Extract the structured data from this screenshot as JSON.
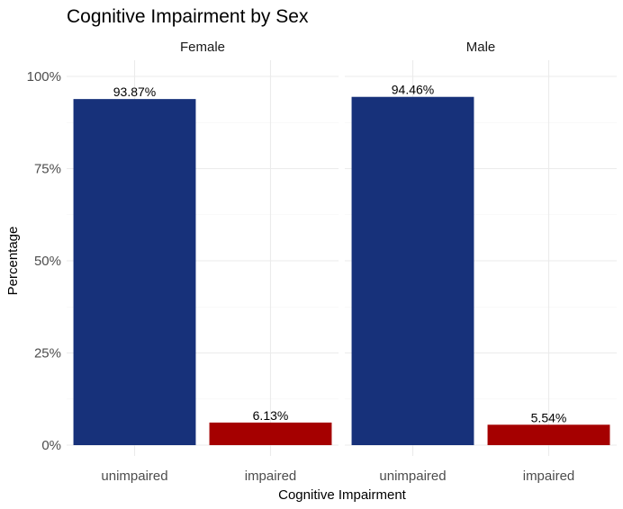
{
  "chart_data": {
    "type": "bar",
    "title": "Cognitive Impairment by Sex",
    "xlabel": "Cognitive Impairment",
    "ylabel": "Percentage",
    "categories": [
      "unimpaired",
      "impaired"
    ],
    "ylim": [
      0,
      100
    ],
    "yticks": [
      0,
      25,
      50,
      75,
      100
    ],
    "ytick_labels": [
      "0%",
      "25%",
      "50%",
      "75%",
      "100%"
    ],
    "grid": true,
    "legend": "none",
    "colors": {
      "unimpaired": "#17317a",
      "impaired": "#a50000"
    },
    "panels": [
      {
        "name": "Female",
        "values": [
          93.87,
          6.13
        ],
        "labels": [
          "93.87%",
          "6.13%"
        ]
      },
      {
        "name": "Male",
        "values": [
          94.46,
          5.54
        ],
        "labels": [
          "94.46%",
          "5.54%"
        ]
      }
    ]
  }
}
